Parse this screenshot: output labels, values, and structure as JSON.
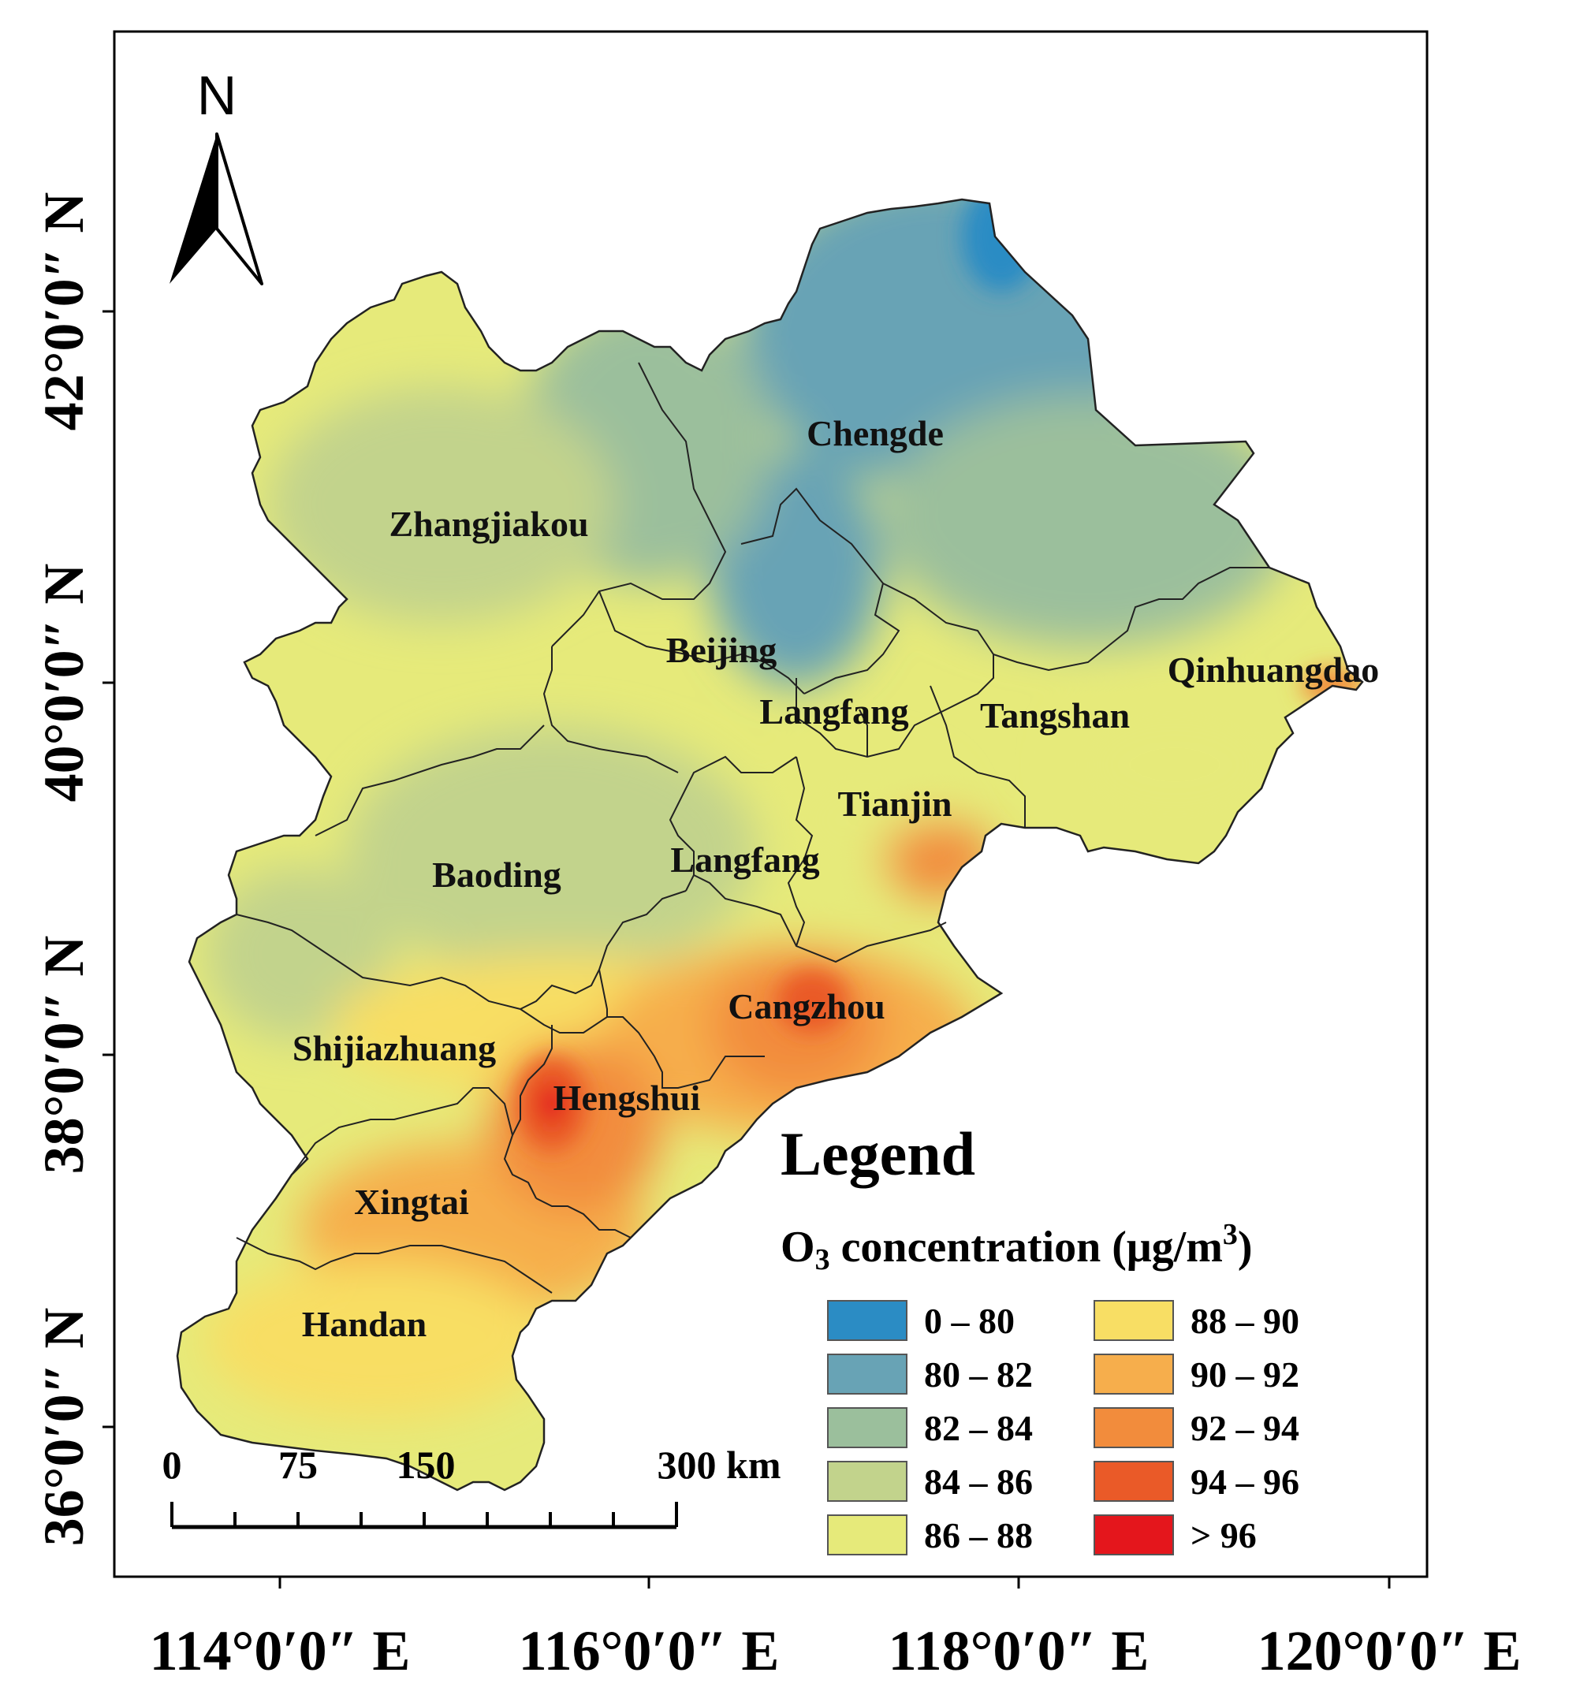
{
  "north_label": "N",
  "cities": [
    {
      "name": "Zhangjiakou"
    },
    {
      "name": "Chengde"
    },
    {
      "name": "Beijing"
    },
    {
      "name": "Langfang"
    },
    {
      "name": "Tangshan"
    },
    {
      "name": "Qinhuangdao"
    },
    {
      "name": "Tianjin"
    },
    {
      "name": "Langfang"
    },
    {
      "name": "Baoding"
    },
    {
      "name": "Cangzhou"
    },
    {
      "name": "Shijiazhuang"
    },
    {
      "name": "Hengshui"
    },
    {
      "name": "Xingtai"
    },
    {
      "name": "Handan"
    }
  ],
  "axes": {
    "lon_ticks": [
      "114°0′0″ E",
      "116°0′0″ E",
      "118°0′0″ E",
      "120°0′0″ E"
    ],
    "lat_ticks": [
      "42°0′0″ N",
      "40°0′0″ N",
      "38°0′0″ N",
      "36°0′0″ N"
    ]
  },
  "legend": {
    "title": "Legend",
    "subtitle_prefix": "O",
    "subtitle_sub": "3",
    "subtitle_mid": " concentration (μg/m",
    "subtitle_sup": "3",
    "subtitle_end": ")",
    "classes": [
      {
        "label": "0 – 80",
        "color": "#2b8cc4"
      },
      {
        "label": "80 – 82",
        "color": "#68a3b5"
      },
      {
        "label": "82 – 84",
        "color": "#9bbf9c"
      },
      {
        "label": "84 – 86",
        "color": "#c2d38c"
      },
      {
        "label": "86 – 88",
        "color": "#e6ea7a"
      },
      {
        "label": "88 – 90",
        "color": "#f8de64"
      },
      {
        "label": "90 – 92",
        "color": "#f6ae4c"
      },
      {
        "label": "92 – 94",
        "color": "#f28c3c"
      },
      {
        "label": "94 – 96",
        "color": "#ea5a28"
      },
      {
        "label": "> 96",
        "color": "#e4161c"
      }
    ]
  },
  "scale_bar": {
    "labels": [
      "0",
      "75",
      "150",
      "300 km"
    ]
  }
}
